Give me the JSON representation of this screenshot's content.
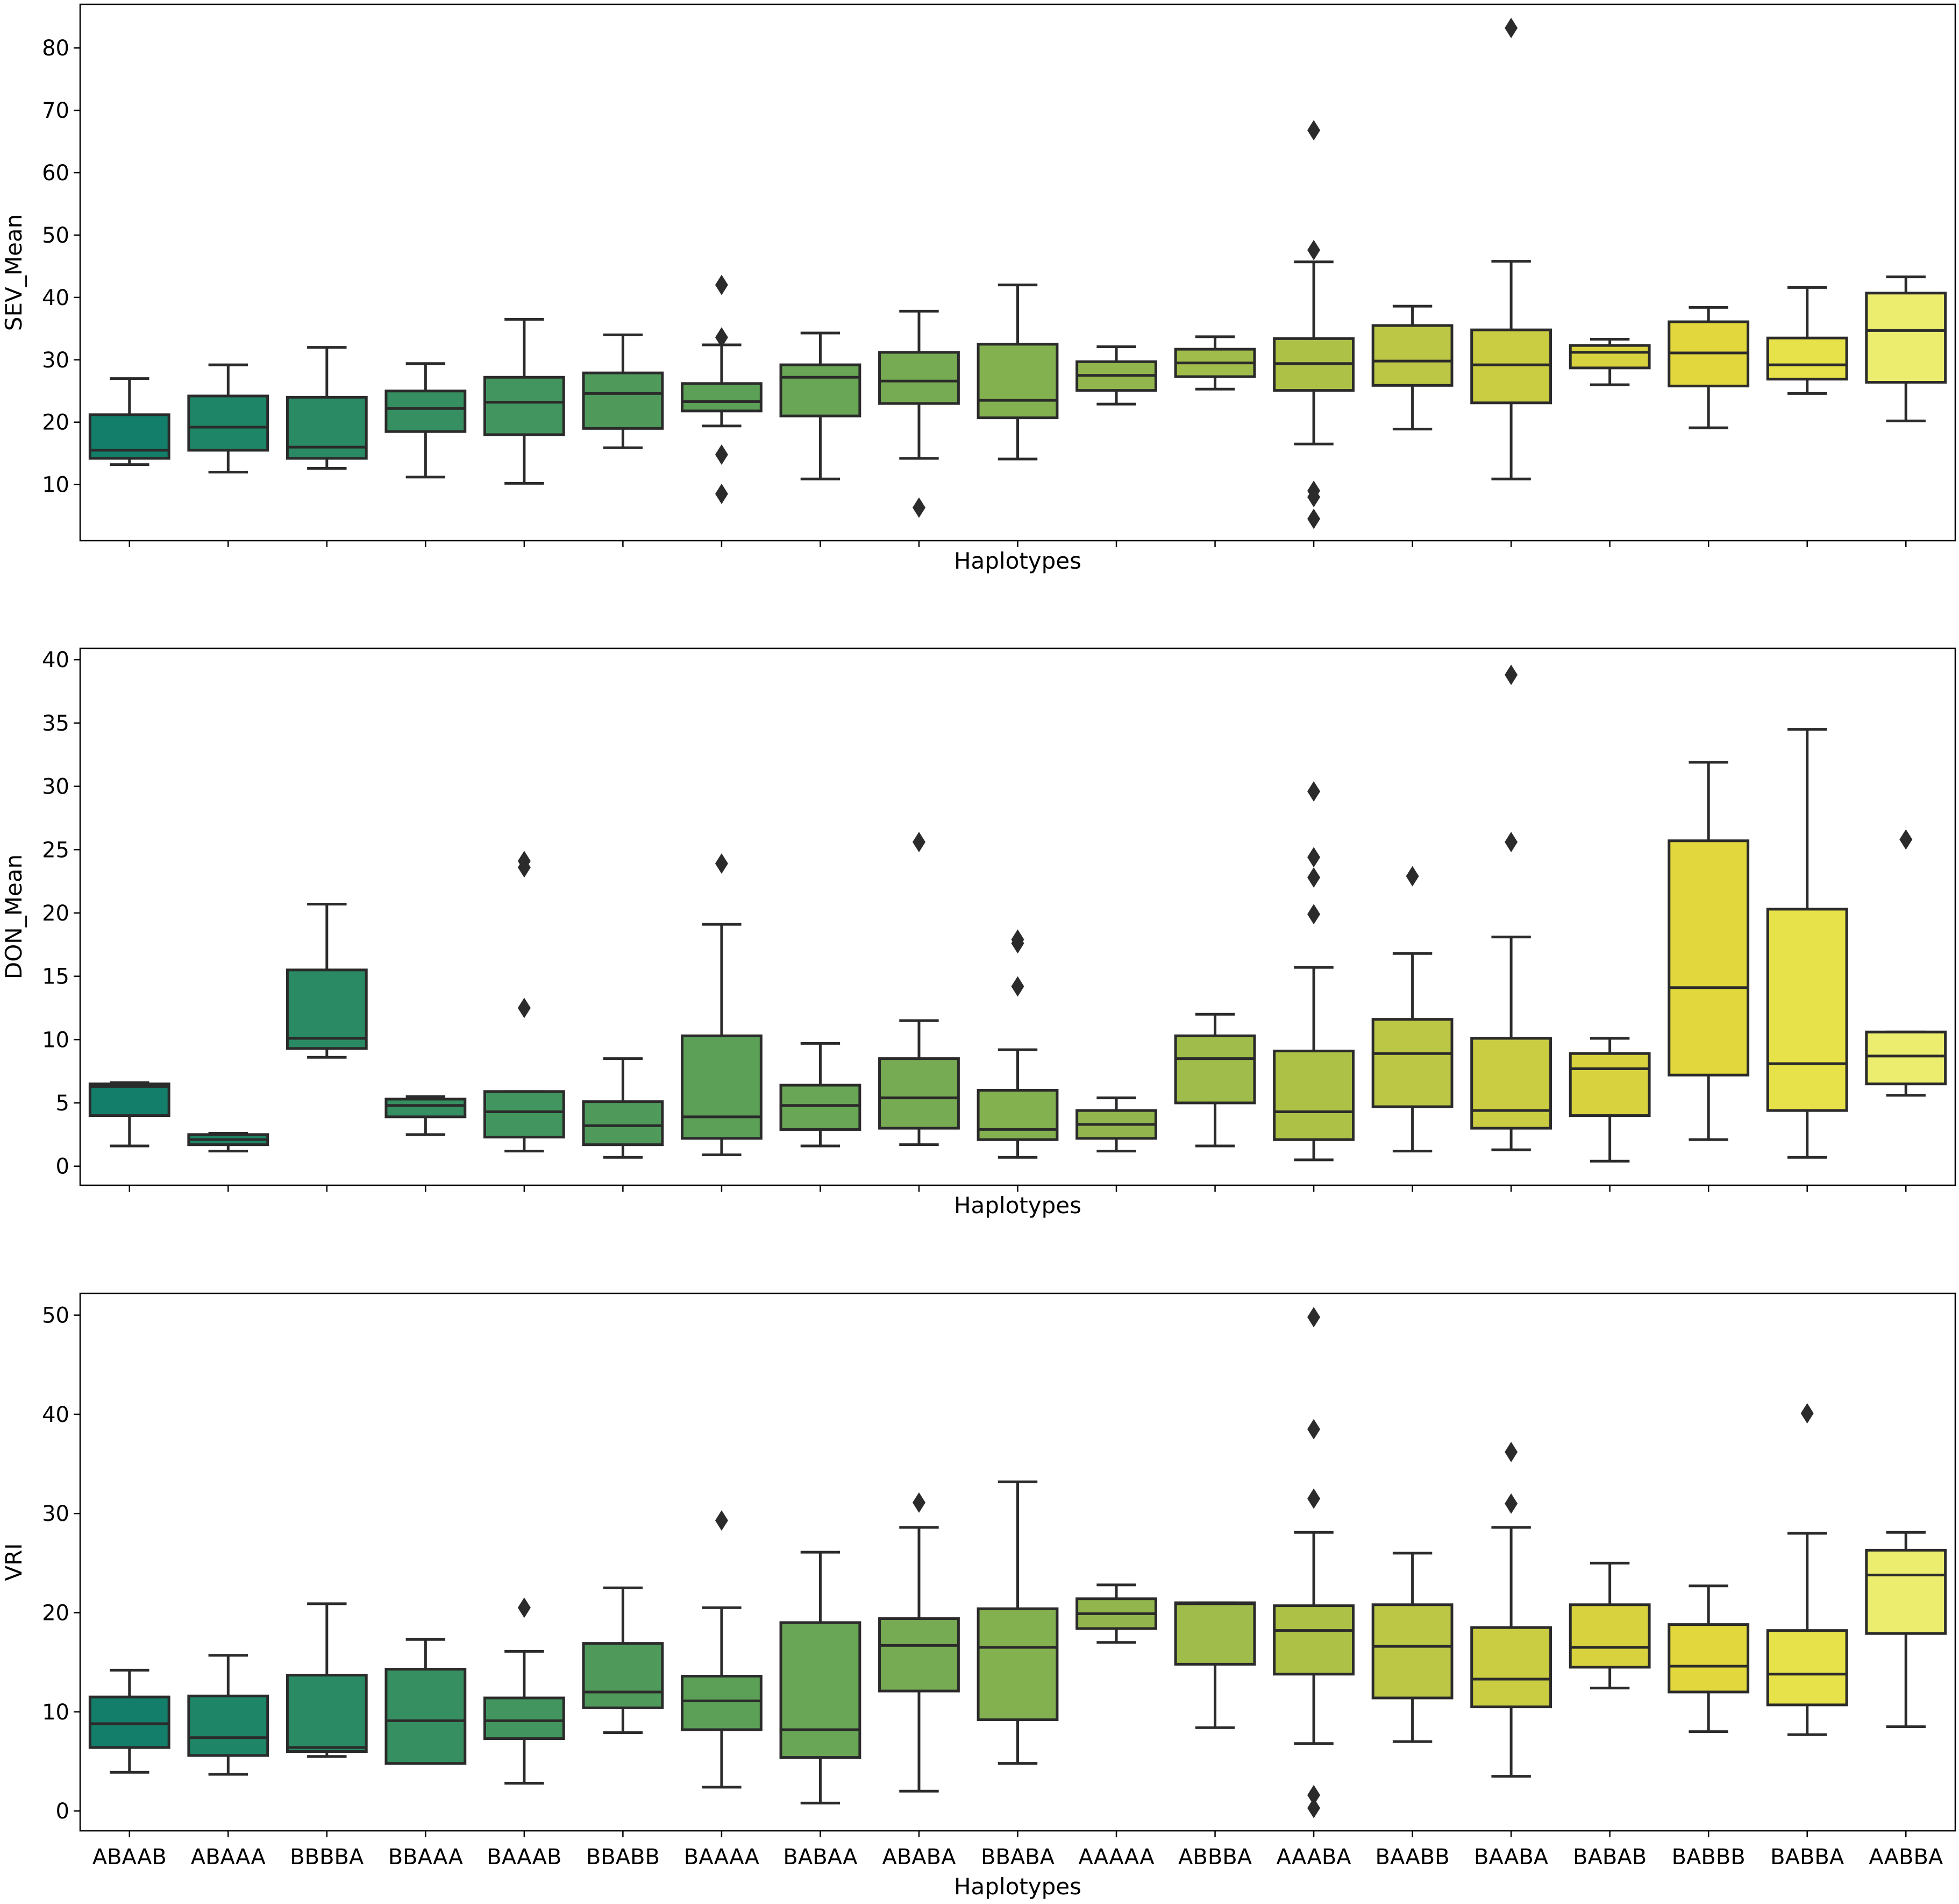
{
  "chart_data": {
    "type": "boxplot",
    "layout": "3 stacked panels sharing x axis",
    "categories": [
      "ABAAB",
      "ABAAA",
      "BBBBA",
      "BBAAA",
      "BAAAB",
      "BBABB",
      "BAAAA",
      "BABAA",
      "ABABA",
      "BBABA",
      "AAAAA",
      "ABBBA",
      "AAABA",
      "BAABB",
      "BAABA",
      "BABAB",
      "BABBB",
      "BABBA",
      "AABBA"
    ],
    "colors": [
      "#137f6a",
      "#1e8567",
      "#2a8a64",
      "#368f61",
      "#42955e",
      "#4f9a5b",
      "#5ca058",
      "#69a655",
      "#77ab53",
      "#84b150",
      "#92b64d",
      "#a0bc4a",
      "#aec147",
      "#bcc745",
      "#cacc42",
      "#d8d23f",
      "#e2d83d",
      "#e7e14a",
      "#ecec6e"
    ],
    "panels": [
      {
        "ylabel": "SEV_Mean",
        "xlabel": "Haplotypes",
        "ylim": [
          1,
          87
        ],
        "yticks": [
          10,
          20,
          30,
          40,
          50,
          60,
          70,
          80
        ],
        "boxes": [
          {
            "q1": 14.2,
            "median": 15.5,
            "q3": 21.2,
            "whislo": 13.2,
            "whishi": 27.0,
            "fliers": []
          },
          {
            "q1": 15.5,
            "median": 19.2,
            "q3": 24.2,
            "whislo": 12.0,
            "whishi": 29.2,
            "fliers": []
          },
          {
            "q1": 14.2,
            "median": 16.0,
            "q3": 24.0,
            "whislo": 12.6,
            "whishi": 32.0,
            "fliers": []
          },
          {
            "q1": 18.5,
            "median": 22.2,
            "q3": 25.0,
            "whislo": 11.2,
            "whishi": 29.4,
            "fliers": []
          },
          {
            "q1": 18.0,
            "median": 23.2,
            "q3": 27.2,
            "whislo": 10.2,
            "whishi": 36.5,
            "fliers": []
          },
          {
            "q1": 19.0,
            "median": 24.6,
            "q3": 27.9,
            "whislo": 15.9,
            "whishi": 34.0,
            "fliers": []
          },
          {
            "q1": 21.8,
            "median": 23.3,
            "q3": 26.2,
            "whislo": 19.4,
            "whishi": 32.4,
            "fliers": [
              42.0,
              33.6,
              14.8,
              8.5
            ]
          },
          {
            "q1": 21.0,
            "median": 27.2,
            "q3": 29.2,
            "whislo": 10.9,
            "whishi": 34.3,
            "fliers": []
          },
          {
            "q1": 23.0,
            "median": 26.6,
            "q3": 31.2,
            "whislo": 14.2,
            "whishi": 37.8,
            "fliers": [
              6.3
            ]
          },
          {
            "q1": 20.7,
            "median": 23.5,
            "q3": 32.5,
            "whislo": 14.1,
            "whishi": 42.0,
            "fliers": []
          },
          {
            "q1": 25.1,
            "median": 27.5,
            "q3": 29.7,
            "whislo": 22.9,
            "whishi": 32.1,
            "fliers": []
          },
          {
            "q1": 27.3,
            "median": 29.5,
            "q3": 31.7,
            "whislo": 25.3,
            "whishi": 33.7,
            "fliers": []
          },
          {
            "q1": 25.1,
            "median": 29.4,
            "q3": 33.4,
            "whislo": 16.5,
            "whishi": 45.7,
            "fliers": [
              66.8,
              47.6,
              9.0,
              8.0,
              4.5
            ]
          },
          {
            "q1": 25.9,
            "median": 29.8,
            "q3": 35.5,
            "whislo": 18.9,
            "whishi": 38.6,
            "fliers": []
          },
          {
            "q1": 23.1,
            "median": 29.2,
            "q3": 34.8,
            "whislo": 10.9,
            "whishi": 45.8,
            "fliers": [
              83.2
            ]
          },
          {
            "q1": 28.7,
            "median": 31.2,
            "q3": 32.3,
            "whislo": 26.0,
            "whishi": 33.3,
            "fliers": []
          },
          {
            "q1": 25.8,
            "median": 31.1,
            "q3": 36.1,
            "whislo": 19.1,
            "whishi": 38.4,
            "fliers": []
          },
          {
            "q1": 26.9,
            "median": 29.2,
            "q3": 33.5,
            "whislo": 24.6,
            "whishi": 41.6,
            "fliers": []
          },
          {
            "q1": 26.4,
            "median": 34.7,
            "q3": 40.7,
            "whislo": 20.2,
            "whishi": 43.3,
            "fliers": []
          }
        ]
      },
      {
        "ylabel": "DON_Mean",
        "xlabel": "Haplotypes",
        "ylim": [
          -1.5,
          40.9
        ],
        "yticks": [
          0,
          5,
          10,
          15,
          20,
          25,
          30,
          35,
          40
        ],
        "boxes": [
          {
            "q1": 4.0,
            "median": 6.3,
            "q3": 6.5,
            "whislo": 1.6,
            "whishi": 6.6,
            "fliers": []
          },
          {
            "q1": 1.7,
            "median": 2.1,
            "q3": 2.5,
            "whislo": 1.2,
            "whishi": 2.6,
            "fliers": []
          },
          {
            "q1": 9.3,
            "median": 10.1,
            "q3": 15.5,
            "whislo": 8.6,
            "whishi": 20.7,
            "fliers": []
          },
          {
            "q1": 3.9,
            "median": 4.8,
            "q3": 5.3,
            "whislo": 2.5,
            "whishi": 5.5,
            "fliers": []
          },
          {
            "q1": 2.3,
            "median": 4.3,
            "q3": 5.9,
            "whislo": 1.2,
            "whishi": 5.9,
            "fliers": [
              24.1,
              23.6,
              12.5
            ]
          },
          {
            "q1": 1.7,
            "median": 3.2,
            "q3": 5.1,
            "whislo": 0.7,
            "whishi": 8.5,
            "fliers": []
          },
          {
            "q1": 2.2,
            "median": 3.9,
            "q3": 10.3,
            "whislo": 0.9,
            "whishi": 19.1,
            "fliers": [
              23.9
            ]
          },
          {
            "q1": 2.9,
            "median": 4.8,
            "q3": 6.4,
            "whislo": 1.6,
            "whishi": 9.7,
            "fliers": []
          },
          {
            "q1": 3.0,
            "median": 5.4,
            "q3": 8.5,
            "whislo": 1.7,
            "whishi": 11.5,
            "fliers": [
              25.6
            ]
          },
          {
            "q1": 2.1,
            "median": 2.9,
            "q3": 6.0,
            "whislo": 0.7,
            "whishi": 9.2,
            "fliers": [
              17.9,
              17.6,
              14.2
            ]
          },
          {
            "q1": 2.2,
            "median": 3.3,
            "q3": 4.4,
            "whislo": 1.2,
            "whishi": 5.4,
            "fliers": []
          },
          {
            "q1": 5.0,
            "median": 8.5,
            "q3": 10.3,
            "whislo": 1.6,
            "whishi": 12.0,
            "fliers": []
          },
          {
            "q1": 2.1,
            "median": 4.3,
            "q3": 9.1,
            "whislo": 0.5,
            "whishi": 15.7,
            "fliers": [
              29.6,
              24.4,
              22.8,
              19.9
            ]
          },
          {
            "q1": 4.7,
            "median": 8.9,
            "q3": 11.6,
            "whislo": 1.2,
            "whishi": 16.8,
            "fliers": [
              22.9
            ]
          },
          {
            "q1": 3.0,
            "median": 4.4,
            "q3": 10.1,
            "whislo": 1.3,
            "whishi": 18.1,
            "fliers": [
              38.8,
              25.6
            ]
          },
          {
            "q1": 4.0,
            "median": 7.7,
            "q3": 8.9,
            "whislo": 0.4,
            "whishi": 10.1,
            "fliers": []
          },
          {
            "q1": 7.2,
            "median": 14.1,
            "q3": 25.7,
            "whislo": 2.1,
            "whishi": 31.9,
            "fliers": []
          },
          {
            "q1": 4.4,
            "median": 8.1,
            "q3": 20.3,
            "whislo": 0.7,
            "whishi": 34.5,
            "fliers": []
          },
          {
            "q1": 6.5,
            "median": 8.7,
            "q3": 10.6,
            "whislo": 5.6,
            "whishi": 10.6,
            "fliers": [
              25.8
            ]
          }
        ]
      },
      {
        "ylabel": "VRI",
        "xlabel": "Haplotypes",
        "ylim": [
          -2.0,
          52.2
        ],
        "yticks": [
          0,
          10,
          20,
          30,
          40,
          50
        ],
        "boxes": [
          {
            "q1": 6.4,
            "median": 8.8,
            "q3": 11.5,
            "whislo": 3.9,
            "whishi": 14.2,
            "fliers": []
          },
          {
            "q1": 5.6,
            "median": 7.4,
            "q3": 11.6,
            "whislo": 3.7,
            "whishi": 15.7,
            "fliers": []
          },
          {
            "q1": 6.0,
            "median": 6.4,
            "q3": 13.7,
            "whislo": 5.5,
            "whishi": 20.9,
            "fliers": []
          },
          {
            "q1": 4.8,
            "median": 9.1,
            "q3": 14.3,
            "whislo": 4.8,
            "whishi": 17.3,
            "fliers": []
          },
          {
            "q1": 7.3,
            "median": 9.1,
            "q3": 11.4,
            "whislo": 2.8,
            "whishi": 16.1,
            "fliers": [
              20.5
            ]
          },
          {
            "q1": 10.4,
            "median": 12.0,
            "q3": 16.9,
            "whislo": 7.9,
            "whishi": 22.5,
            "fliers": []
          },
          {
            "q1": 8.2,
            "median": 11.1,
            "q3": 13.6,
            "whislo": 2.4,
            "whishi": 20.5,
            "fliers": [
              29.3
            ]
          },
          {
            "q1": 5.4,
            "median": 8.2,
            "q3": 19.0,
            "whislo": 0.8,
            "whishi": 26.1,
            "fliers": []
          },
          {
            "q1": 12.1,
            "median": 16.7,
            "q3": 19.4,
            "whislo": 2.0,
            "whishi": 28.6,
            "fliers": [
              31.1
            ]
          },
          {
            "q1": 9.2,
            "median": 16.5,
            "q3": 20.4,
            "whislo": 4.8,
            "whishi": 33.2,
            "fliers": []
          },
          {
            "q1": 18.4,
            "median": 19.9,
            "q3": 21.4,
            "whislo": 17.0,
            "whishi": 22.8,
            "fliers": []
          },
          {
            "q1": 14.8,
            "median": 20.9,
            "q3": 21.0,
            "whislo": 8.4,
            "whishi": 21.0,
            "fliers": []
          },
          {
            "q1": 13.8,
            "median": 18.2,
            "q3": 20.7,
            "whislo": 6.8,
            "whishi": 28.1,
            "fliers": [
              49.8,
              38.5,
              31.5,
              1.6,
              0.3
            ]
          },
          {
            "q1": 11.4,
            "median": 16.6,
            "q3": 20.8,
            "whislo": 7.0,
            "whishi": 26.0,
            "fliers": []
          },
          {
            "q1": 10.5,
            "median": 13.3,
            "q3": 18.5,
            "whislo": 3.5,
            "whishi": 28.6,
            "fliers": [
              36.2,
              31.0
            ]
          },
          {
            "q1": 14.5,
            "median": 16.5,
            "q3": 20.8,
            "whislo": 12.4,
            "whishi": 25.0,
            "fliers": []
          },
          {
            "q1": 12.0,
            "median": 14.6,
            "q3": 18.8,
            "whislo": 8.0,
            "whishi": 22.7,
            "fliers": []
          },
          {
            "q1": 10.7,
            "median": 13.8,
            "q3": 18.2,
            "whislo": 7.7,
            "whishi": 28.0,
            "fliers": [
              40.1
            ]
          },
          {
            "q1": 17.9,
            "median": 23.8,
            "q3": 26.3,
            "whislo": 8.5,
            "whishi": 28.1,
            "fliers": []
          }
        ]
      }
    ]
  }
}
